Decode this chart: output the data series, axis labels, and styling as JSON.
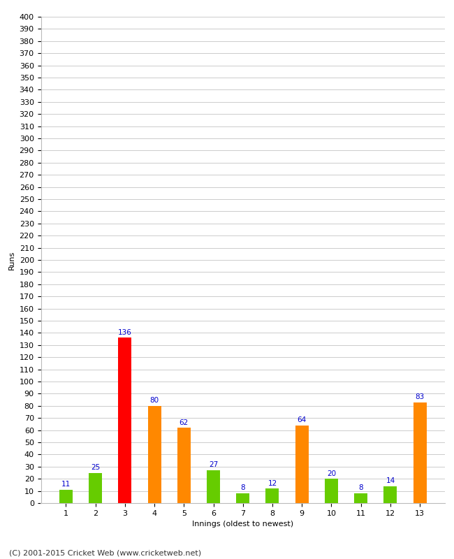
{
  "title": "",
  "xlabel": "Innings (oldest to newest)",
  "ylabel": "Runs",
  "categories": [
    1,
    2,
    3,
    4,
    5,
    6,
    7,
    8,
    9,
    10,
    11,
    12,
    13
  ],
  "values": [
    11,
    25,
    136,
    80,
    62,
    27,
    8,
    12,
    64,
    20,
    8,
    14,
    83
  ],
  "bar_colors": [
    "#66cc00",
    "#66cc00",
    "#ff0000",
    "#ff8800",
    "#ff8800",
    "#66cc00",
    "#66cc00",
    "#66cc00",
    "#ff8800",
    "#66cc00",
    "#66cc00",
    "#66cc00",
    "#ff8800"
  ],
  "ylim": [
    0,
    400
  ],
  "ytick_step": 10,
  "label_color": "#0000cc",
  "background_color": "#ffffff",
  "grid_color": "#cccccc",
  "footer": "(C) 2001-2015 Cricket Web (www.cricketweb.net)",
  "axis_fontsize": 8,
  "label_fontsize": 7.5,
  "footer_fontsize": 8,
  "bar_width": 0.45
}
